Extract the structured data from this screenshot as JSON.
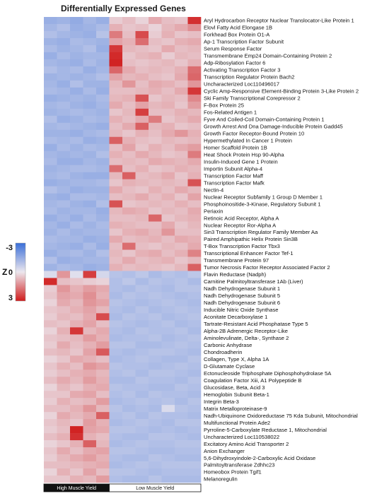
{
  "chart_data": {
    "type": "heatmap",
    "title": "Differentially Expressed Genes",
    "colorbar": {
      "label": "Z",
      "ticks": [
        -3,
        0,
        3
      ],
      "low_color": "#3a6fd8",
      "mid_color": "#ece7ee",
      "high_color": "#d01c1c"
    },
    "groups": [
      {
        "label": "High Muscle Yield",
        "columns": 5,
        "bg": "#111111",
        "fg": "#ffffff"
      },
      {
        "label": "Low Muscle Yield",
        "columns": 7,
        "bg": "#ffffff",
        "fg": "#111111"
      }
    ],
    "genes": [
      "Aryl Hydrocarbon Receptor Nuclear Translocator-Like Protein 1",
      "Elovl Fatty Acid Elongase 1B",
      "Forkhead Box Protein O1-A",
      "Ap-1 Transcription Factor Subunit",
      "Serum Response Factor",
      "Transmembrane Emp24 Domain-Containing Protein 2",
      "Adp-Ribosylation Factor 6",
      "Activating Transcription Factor 3",
      "Transcription Regulator Protein Bach2",
      "Uncharacterized Loc110496017",
      "Cyclic Amp-Responsive Element-Binding Protein 3-Like Protein 2",
      "Ski Family Transcriptional Corepressor 2",
      "F-Box Protein 25",
      "Fos-Related Antigen 1",
      "Fyve And Coiled-Coil Domain-Containing Protein 1",
      "Growth Arrest And Dna Damage-Inducible Protein Gadd45",
      "Growth Factor Receptor-Bound Protein 10",
      "Hypermethylated In Cancer 1 Protein",
      "Homer Scaffold Protein 1B",
      "Heat Shock Protein Hsp 90-Alpha",
      "Insulin-Induced Gene 1 Protein",
      "Importin Subunit Alpha-4",
      "Transcription Factor Maff",
      "Transcription Factor Mafk",
      "Nectin-4",
      "Nuclear Receptor Subfamily 1 Group D Member 1",
      "Phosphoinositide-3-Kinase, Regulatory Subunit 1",
      "Periaxin",
      "Retinoic Acid Receptor, Alpha A",
      "Nuclear Receptor Ror-Alpha A",
      "Sin3 Transcription Regulator Family Member Aa",
      "Paired Amphipathic Helix Protein Sin3B",
      "T-Box Transcription Factor Tbx3",
      "Transcriptional Enhancer Factor Tef-1",
      "Transmembrane Protein 97",
      "Tumor Necrosis Factor Receptor Associated Factor 2",
      "Flavin Reductase (Nadph)",
      "Carnitine Palmitoyltransferase 1Ab (Liver)",
      "Nadh Dehydrogenase Subunit 1",
      "Nadh Dehydrogenase Subunit 5",
      "Nadh Dehydrogenase Subunit 6",
      "Inducible Nitric Oxide Synthase",
      "Aconitate Decarboxylase 1",
      "Tartrate-Resistant Acid Phosphatase Type 5",
      "Alpha-2B Adrenergic Receptor-Like",
      "Aminolevulinate, Delta-, Synthase 2",
      "Carbonic Anhydrase",
      "Chondroadherin",
      "Collagen, Type X, Alpha 1A",
      "D-Glutamate Cyclase",
      "Ectonucleoside Triphosphate Diphosphohydrolase 5A",
      "Coagulation Factor Xiii, A1 Polypeptide B",
      "Glucosidase, Beta, Acid 3",
      "Hemoglobin Subunit Beta-1",
      "Integrin Beta-3",
      "Matrix Metalloproteinase-9",
      "Nadh-Ubiquinone Oxidoreductase 75 Kda Subunit, Mitochondrial",
      "Multifunctional Protein Ade2",
      "Pyrroline-5-Carboxylate Reductase 1, Mitochondrial",
      "Uncharacterized Loc110538022",
      "Excitatory Amino Acid Transporter 2",
      "Anion Exchanger",
      "5,6-Dihydroxyindole-2-Carboxylic Acid Oxidase",
      "Palmitoyltransferase Zdhhc23",
      "Homeobox Protein Tgif1",
      "Melanoregulin"
    ],
    "values": [
      [
        -1.4,
        -1.3,
        -1.5,
        -1.2,
        -1.4,
        0.4,
        0.6,
        0.3,
        0.9,
        0.6,
        0.5,
        2.7
      ],
      [
        -1.2,
        -1.0,
        -1.4,
        -1.3,
        -1.1,
        0.8,
        0.5,
        0.6,
        0.3,
        0.7,
        0.9,
        1.3
      ],
      [
        -1.0,
        -1.2,
        -1.3,
        -1.4,
        -0.9,
        1.6,
        0.6,
        2.3,
        0.4,
        0.8,
        0.5,
        0.6
      ],
      [
        -1.3,
        -1.4,
        -1.1,
        -1.2,
        -1.3,
        1.0,
        0.8,
        1.8,
        0.6,
        0.5,
        0.8,
        0.9
      ],
      [
        -1.1,
        -1.3,
        -1.2,
        -1.0,
        -1.4,
        2.6,
        0.7,
        0.6,
        0.5,
        0.9,
        0.6,
        0.7
      ],
      [
        -1.4,
        -1.1,
        -1.3,
        -1.2,
        -1.2,
        2.8,
        0.5,
        0.7,
        0.8,
        0.4,
        0.7,
        0.6
      ],
      [
        -1.2,
        -1.3,
        -1.4,
        -1.1,
        -1.3,
        2.9,
        0.6,
        0.5,
        0.6,
        0.7,
        0.5,
        0.8
      ],
      [
        -1.0,
        -1.2,
        -1.1,
        -1.4,
        -1.2,
        1.9,
        0.9,
        0.6,
        0.7,
        0.6,
        0.8,
        1.8
      ],
      [
        -1.3,
        -1.2,
        -1.3,
        -1.2,
        -1.0,
        1.0,
        0.7,
        0.8,
        0.6,
        0.5,
        0.9,
        1.9
      ],
      [
        -1.2,
        -1.4,
        -1.0,
        -1.3,
        -1.3,
        0.7,
        1.2,
        0.6,
        0.9,
        0.8,
        0.6,
        1.2
      ],
      [
        -1.1,
        -1.2,
        -1.4,
        -1.1,
        -1.4,
        0.6,
        0.6,
        0.7,
        0.8,
        0.6,
        0.9,
        2.6
      ],
      [
        -1.4,
        -1.3,
        -1.2,
        -1.3,
        -1.1,
        0.7,
        0.8,
        2.2,
        0.5,
        0.7,
        0.6,
        1.4
      ],
      [
        -1.2,
        -1.1,
        -1.3,
        -1.4,
        -1.2,
        0.9,
        0.6,
        1.0,
        0.7,
        0.8,
        0.5,
        1.1
      ],
      [
        -1.3,
        -1.2,
        -1.1,
        -1.2,
        -1.3,
        0.5,
        0.7,
        2.5,
        0.6,
        0.6,
        0.8,
        0.7
      ],
      [
        -1.0,
        -1.4,
        -1.3,
        -1.1,
        -1.2,
        0.8,
        0.6,
        0.9,
        1.6,
        0.5,
        0.7,
        0.9
      ],
      [
        -1.2,
        -1.1,
        -1.2,
        -1.3,
        -1.4,
        0.6,
        0.9,
        2.0,
        0.7,
        0.8,
        0.5,
        0.6
      ],
      [
        -1.3,
        -1.3,
        -1.4,
        -1.2,
        -1.1,
        0.7,
        0.5,
        0.8,
        0.6,
        0.9,
        1.2,
        0.8
      ],
      [
        -1.1,
        -1.2,
        -1.1,
        -1.4,
        -1.3,
        2.0,
        0.8,
        0.6,
        0.5,
        0.7,
        0.6,
        0.7
      ],
      [
        -1.4,
        -1.1,
        -1.3,
        -1.1,
        -1.2,
        0.6,
        1.0,
        0.5,
        0.8,
        0.6,
        0.9,
        1.1
      ],
      [
        -1.2,
        -1.3,
        -1.2,
        -1.3,
        -1.0,
        0.8,
        0.6,
        0.9,
        0.7,
        0.5,
        0.6,
        1.6
      ],
      [
        -1.1,
        -1.4,
        -1.4,
        -1.2,
        -1.3,
        0.6,
        0.7,
        0.6,
        0.9,
        0.8,
        0.7,
        0.9
      ],
      [
        -1.3,
        -1.2,
        -1.1,
        -1.1,
        -1.2,
        1.8,
        0.6,
        0.8,
        0.5,
        0.6,
        0.8,
        0.7
      ],
      [
        -1.2,
        -1.1,
        -1.3,
        -1.4,
        -1.4,
        0.7,
        2.0,
        0.6,
        0.7,
        0.9,
        0.5,
        0.8
      ],
      [
        -1.4,
        -1.3,
        -1.2,
        -1.2,
        -1.1,
        0.5,
        0.8,
        0.7,
        0.6,
        0.7,
        0.6,
        2.2
      ],
      [
        -1.0,
        -1.2,
        -1.4,
        -1.3,
        -1.3,
        0.9,
        0.6,
        0.5,
        0.8,
        0.6,
        0.9,
        0.7
      ],
      [
        -1.3,
        -1.4,
        -1.1,
        -1.1,
        -1.2,
        0.6,
        0.7,
        0.9,
        0.6,
        0.8,
        0.5,
        1.0
      ],
      [
        -1.2,
        -1.1,
        -1.3,
        -1.4,
        -1.0,
        2.2,
        0.5,
        0.6,
        0.7,
        0.6,
        0.8,
        0.6
      ],
      [
        -1.1,
        -1.3,
        -1.2,
        -1.2,
        -1.4,
        0.7,
        0.9,
        0.8,
        0.5,
        0.7,
        0.6,
        0.9
      ],
      [
        -1.4,
        -1.2,
        -1.4,
        -1.1,
        -1.3,
        0.6,
        0.6,
        0.7,
        1.9,
        0.5,
        0.7,
        0.8
      ],
      [
        -1.2,
        -1.4,
        -1.1,
        -1.3,
        -1.1,
        0.8,
        0.7,
        0.6,
        0.6,
        0.9,
        0.5,
        0.7
      ],
      [
        -1.3,
        -1.1,
        -1.3,
        -1.2,
        -1.2,
        0.5,
        0.8,
        0.9,
        0.7,
        1.2,
        0.6,
        0.6
      ],
      [
        -1.1,
        -1.2,
        -1.2,
        -1.4,
        -1.3,
        0.9,
        0.6,
        0.7,
        0.8,
        0.6,
        0.9,
        0.8
      ],
      [
        -1.2,
        -1.3,
        -1.4,
        -1.1,
        -1.4,
        0.6,
        1.8,
        0.6,
        0.5,
        0.7,
        0.6,
        0.9
      ],
      [
        -1.4,
        -1.2,
        -1.1,
        -1.3,
        -1.0,
        0.7,
        0.5,
        0.8,
        0.9,
        0.6,
        0.8,
        1.5
      ],
      [
        -1.0,
        -1.4,
        -1.3,
        -1.2,
        -1.2,
        0.6,
        0.9,
        0.6,
        0.7,
        0.8,
        0.5,
        0.7
      ],
      [
        -1.3,
        -1.1,
        -1.2,
        -1.4,
        -1.3,
        0.8,
        0.6,
        0.7,
        0.6,
        0.5,
        0.7,
        2.0
      ],
      [
        -0.3,
        1.2,
        -0.2,
        2.5,
        -0.4,
        -0.9,
        -1.0,
        -0.8,
        -1.1,
        -0.9,
        -1.0,
        -0.8
      ],
      [
        2.8,
        0.6,
        0.5,
        0.4,
        0.3,
        -1.0,
        -0.8,
        -1.1,
        -0.9,
        -1.0,
        -0.9,
        -1.1
      ],
      [
        0.4,
        1.2,
        0.8,
        1.1,
        0.9,
        -1.0,
        -1.1,
        -0.9,
        -1.0,
        -1.1,
        -0.9,
        -0.9
      ],
      [
        0.5,
        1.0,
        0.9,
        1.3,
        0.8,
        -1.1,
        -0.9,
        -1.0,
        -0.9,
        -1.0,
        -1.1,
        -1.0
      ],
      [
        0.3,
        0.9,
        0.7,
        1.2,
        1.0,
        -0.9,
        -1.0,
        -1.1,
        -1.0,
        -0.9,
        -1.0,
        -1.1
      ],
      [
        0.5,
        0.6,
        0.8,
        1.0,
        0.7,
        -1.0,
        -1.1,
        -0.9,
        -1.1,
        -1.0,
        -0.9,
        -1.0
      ],
      [
        0.4,
        0.7,
        0.6,
        0.9,
        2.3,
        -1.1,
        -0.9,
        -1.0,
        -0.9,
        -1.1,
        -1.0,
        -0.9
      ],
      [
        0.6,
        0.5,
        0.8,
        1.0,
        0.6,
        -0.9,
        -1.0,
        -1.1,
        -1.0,
        -0.9,
        -1.1,
        -1.0
      ],
      [
        0.3,
        0.8,
        2.6,
        0.7,
        0.9,
        -1.0,
        -1.1,
        -0.9,
        -1.0,
        -1.0,
        -0.9,
        -1.1
      ],
      [
        0.5,
        0.6,
        0.7,
        1.1,
        0.8,
        -1.1,
        -1.0,
        -1.0,
        -0.9,
        -1.1,
        -1.0,
        -0.9
      ],
      [
        0.4,
        0.9,
        0.6,
        0.8,
        1.1,
        -0.9,
        -0.9,
        -1.1,
        -1.1,
        -1.0,
        -0.9,
        -1.0
      ],
      [
        0.6,
        0.7,
        0.5,
        1.0,
        2.1,
        -1.0,
        -1.1,
        -1.0,
        -0.9,
        -0.9,
        -1.0,
        -1.1
      ],
      [
        0.3,
        0.5,
        0.9,
        0.8,
        0.6,
        -1.1,
        -1.0,
        -0.9,
        -1.0,
        -1.1,
        -1.1,
        -0.9
      ],
      [
        0.5,
        0.8,
        0.6,
        1.2,
        1.0,
        -0.9,
        -1.0,
        -1.0,
        -1.1,
        -1.0,
        -0.9,
        -1.0
      ],
      [
        0.4,
        0.6,
        0.8,
        0.9,
        0.7,
        -1.0,
        -0.9,
        -1.1,
        -0.9,
        -0.9,
        -1.0,
        -1.1
      ],
      [
        0.6,
        0.9,
        0.7,
        1.1,
        0.8,
        -1.1,
        -1.1,
        -0.9,
        -1.0,
        -1.0,
        -1.1,
        -0.9
      ],
      [
        0.3,
        0.7,
        0.5,
        0.8,
        0.9,
        -0.9,
        -1.0,
        -1.0,
        -1.1,
        -1.1,
        -0.9,
        -1.0
      ],
      [
        0.5,
        0.5,
        0.9,
        1.0,
        0.6,
        -1.0,
        -0.9,
        -1.1,
        -0.9,
        -1.0,
        -1.0,
        -1.1
      ],
      [
        0.4,
        0.8,
        0.6,
        0.7,
        1.1,
        -1.1,
        -1.0,
        -0.9,
        -1.0,
        -0.9,
        -1.1,
        -0.9
      ],
      [
        0.6,
        0.6,
        0.8,
        1.2,
        0.7,
        -0.9,
        -1.1,
        -1.0,
        -1.1,
        -0.3,
        -0.9,
        -1.0
      ],
      [
        0.3,
        0.9,
        0.7,
        0.9,
        2.0,
        -1.0,
        -0.9,
        -1.1,
        -0.9,
        -1.0,
        -1.0,
        -1.1
      ],
      [
        0.5,
        0.7,
        0.5,
        1.1,
        0.8,
        -1.1,
        -1.0,
        -0.9,
        -1.0,
        -1.1,
        -0.9,
        -0.9
      ],
      [
        0.4,
        0.6,
        2.9,
        1.0,
        0.9,
        -0.9,
        -0.9,
        -1.0,
        -1.1,
        -1.0,
        -1.1,
        -1.0
      ],
      [
        0.6,
        0.8,
        2.7,
        0.8,
        0.6,
        -1.0,
        -1.1,
        -1.1,
        -0.9,
        -0.9,
        -1.0,
        -1.1
      ],
      [
        0.3,
        0.5,
        0.8,
        2.0,
        0.7,
        -1.1,
        -1.0,
        -0.9,
        -1.0,
        -1.0,
        -0.9,
        -0.9
      ],
      [
        0.5,
        0.9,
        0.6,
        0.9,
        1.0,
        -0.9,
        -0.9,
        -1.0,
        -1.1,
        -1.1,
        -1.0,
        -1.0
      ],
      [
        0.4,
        0.7,
        0.9,
        1.1,
        0.8,
        -1.0,
        -1.1,
        -1.1,
        -0.9,
        -1.0,
        -1.1,
        -1.1
      ],
      [
        0.6,
        0.6,
        0.7,
        0.8,
        0.9,
        -1.1,
        -1.0,
        -0.9,
        -1.0,
        -0.9,
        -0.9,
        -0.9
      ],
      [
        0.3,
        0.8,
        0.5,
        1.0,
        0.6,
        -0.9,
        -0.9,
        -1.0,
        -1.1,
        -1.0,
        -1.0,
        -1.0
      ],
      [
        0.5,
        0.5,
        0.8,
        0.7,
        1.1,
        -1.0,
        -1.1,
        -1.1,
        -0.9,
        -1.1,
        -1.1,
        -1.1
      ]
    ]
  }
}
